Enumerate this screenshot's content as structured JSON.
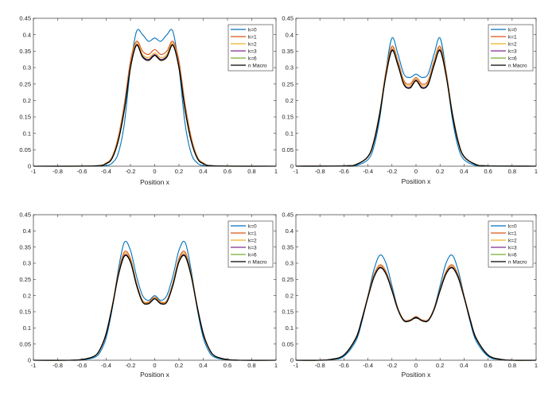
{
  "colors": {
    "k0": "#0072BD",
    "k1": "#D95319",
    "k2": "#EDB120",
    "k3": "#7E2F8E",
    "k6": "#77AC30",
    "macro": "#000000"
  },
  "chart_data": [
    {
      "type": "line",
      "title": "",
      "xlabel": "Position x",
      "ylabel": "",
      "xlim": [
        -1,
        1
      ],
      "ylim": [
        0,
        0.45
      ],
      "xticks": [
        "-1",
        "-0.8",
        "-0.6",
        "-0.4",
        "-0.2",
        "0",
        "0.2",
        "0.4",
        "0.6",
        "0.8",
        "1"
      ],
      "yticks": [
        "0",
        "0.05",
        "0.1",
        "0.15",
        "0.2",
        "0.25",
        "0.3",
        "0.35",
        "0.4",
        "0.45"
      ],
      "legend_position": "top-right",
      "x": [
        -1,
        -0.5,
        -0.4,
        -0.35,
        -0.3,
        -0.25,
        -0.2,
        -0.15,
        -0.1,
        -0.05,
        0,
        0.05,
        0.1,
        0.15,
        0.2,
        0.25,
        0.3,
        0.35,
        0.4,
        0.5,
        1
      ],
      "series": [
        {
          "name": "k=0",
          "color_key": "k0",
          "values": [
            0,
            0,
            0.002,
            0.01,
            0.04,
            0.13,
            0.3,
            0.41,
            0.4,
            0.38,
            0.39,
            0.38,
            0.4,
            0.41,
            0.3,
            0.13,
            0.04,
            0.01,
            0.002,
            0,
            0
          ]
        },
        {
          "name": "k=1",
          "color_key": "k1",
          "values": [
            0,
            0.001,
            0.01,
            0.03,
            0.09,
            0.19,
            0.32,
            0.38,
            0.35,
            0.34,
            0.355,
            0.34,
            0.35,
            0.38,
            0.32,
            0.19,
            0.09,
            0.03,
            0.01,
            0.001,
            0
          ]
        },
        {
          "name": "k=2",
          "color_key": "k2",
          "values": [
            0,
            0.001,
            0.009,
            0.028,
            0.085,
            0.18,
            0.31,
            0.375,
            0.34,
            0.33,
            0.345,
            0.33,
            0.34,
            0.375,
            0.31,
            0.18,
            0.085,
            0.028,
            0.009,
            0.001,
            0
          ]
        },
        {
          "name": "k=3",
          "color_key": "k3",
          "values": [
            0,
            0.001,
            0.008,
            0.026,
            0.08,
            0.175,
            0.305,
            0.37,
            0.335,
            0.325,
            0.34,
            0.325,
            0.335,
            0.37,
            0.305,
            0.175,
            0.08,
            0.026,
            0.008,
            0.001,
            0
          ]
        },
        {
          "name": "k=6",
          "color_key": "k6",
          "values": [
            0,
            0.001,
            0.008,
            0.025,
            0.078,
            0.172,
            0.3,
            0.368,
            0.332,
            0.322,
            0.337,
            0.322,
            0.332,
            0.368,
            0.3,
            0.172,
            0.078,
            0.025,
            0.008,
            0.001,
            0
          ]
        },
        {
          "name": "n Macro",
          "color_key": "macro",
          "values": [
            0,
            0.001,
            0.008,
            0.025,
            0.078,
            0.172,
            0.3,
            0.368,
            0.332,
            0.322,
            0.337,
            0.322,
            0.332,
            0.368,
            0.3,
            0.172,
            0.078,
            0.025,
            0.008,
            0.001,
            0
          ]
        }
      ]
    },
    {
      "type": "line",
      "title": "",
      "xlabel": "Position x",
      "ylabel": "",
      "xlim": [
        -1,
        1
      ],
      "ylim": [
        0,
        0.45
      ],
      "xticks": [
        "-1",
        "-0.8",
        "-0.6",
        "-0.4",
        "-0.2",
        "0",
        "0.2",
        "0.4",
        "0.6",
        "0.8",
        "1"
      ],
      "yticks": [
        "0",
        "0.05",
        "0.1",
        "0.15",
        "0.2",
        "0.25",
        "0.3",
        "0.35",
        "0.4",
        "0.45"
      ],
      "legend_position": "top-right",
      "x": [
        -1,
        -0.6,
        -0.5,
        -0.4,
        -0.35,
        -0.3,
        -0.25,
        -0.2,
        -0.15,
        -0.1,
        -0.05,
        0,
        0.05,
        0.1,
        0.15,
        0.2,
        0.25,
        0.3,
        0.35,
        0.4,
        0.5,
        0.6,
        1
      ],
      "series": [
        {
          "name": "k=0",
          "color_key": "k0",
          "values": [
            0,
            0,
            0.002,
            0.02,
            0.06,
            0.15,
            0.29,
            0.39,
            0.34,
            0.28,
            0.27,
            0.28,
            0.27,
            0.28,
            0.34,
            0.39,
            0.29,
            0.15,
            0.06,
            0.02,
            0.002,
            0,
            0
          ]
        },
        {
          "name": "k=1",
          "color_key": "k1",
          "values": [
            0,
            0.001,
            0.005,
            0.03,
            0.08,
            0.17,
            0.29,
            0.365,
            0.32,
            0.26,
            0.25,
            0.27,
            0.25,
            0.26,
            0.32,
            0.365,
            0.29,
            0.17,
            0.08,
            0.03,
            0.005,
            0.001,
            0
          ]
        },
        {
          "name": "k=2",
          "color_key": "k2",
          "values": [
            0,
            0.001,
            0.005,
            0.03,
            0.078,
            0.168,
            0.285,
            0.36,
            0.315,
            0.255,
            0.245,
            0.265,
            0.245,
            0.255,
            0.315,
            0.36,
            0.285,
            0.168,
            0.078,
            0.03,
            0.005,
            0.001,
            0
          ]
        },
        {
          "name": "k=3",
          "color_key": "k3",
          "values": [
            0,
            0.001,
            0.005,
            0.029,
            0.076,
            0.165,
            0.28,
            0.355,
            0.31,
            0.25,
            0.24,
            0.262,
            0.24,
            0.25,
            0.31,
            0.355,
            0.28,
            0.165,
            0.076,
            0.029,
            0.005,
            0.001,
            0
          ]
        },
        {
          "name": "k=6",
          "color_key": "k6",
          "values": [
            0,
            0.001,
            0.005,
            0.029,
            0.075,
            0.163,
            0.277,
            0.352,
            0.307,
            0.248,
            0.238,
            0.26,
            0.238,
            0.248,
            0.307,
            0.352,
            0.277,
            0.163,
            0.075,
            0.029,
            0.005,
            0.001,
            0
          ]
        },
        {
          "name": "n Macro",
          "color_key": "macro",
          "values": [
            0,
            0.001,
            0.005,
            0.029,
            0.075,
            0.163,
            0.277,
            0.352,
            0.307,
            0.248,
            0.238,
            0.26,
            0.238,
            0.248,
            0.307,
            0.352,
            0.277,
            0.163,
            0.075,
            0.029,
            0.005,
            0.001,
            0
          ]
        }
      ]
    },
    {
      "type": "line",
      "title": "",
      "xlabel": "Position x",
      "ylabel": "",
      "xlim": [
        -1,
        1
      ],
      "ylim": [
        0,
        0.45
      ],
      "xticks": [
        "-1",
        "-0.8",
        "-0.6",
        "-0.4",
        "-0.2",
        "0",
        "0.2",
        "0.4",
        "0.6",
        "0.8",
        "1"
      ],
      "yticks": [
        "0",
        "0.05",
        "0.1",
        "0.15",
        "0.2",
        "0.25",
        "0.3",
        "0.35",
        "0.4",
        "0.45"
      ],
      "legend_position": "top-right",
      "x": [
        -1,
        -0.7,
        -0.6,
        -0.5,
        -0.45,
        -0.4,
        -0.35,
        -0.3,
        -0.25,
        -0.2,
        -0.15,
        -0.1,
        -0.05,
        0,
        0.05,
        0.1,
        0.15,
        0.2,
        0.25,
        0.3,
        0.35,
        0.4,
        0.45,
        0.5,
        0.6,
        0.7,
        1
      ],
      "series": [
        {
          "name": "k=0",
          "color_key": "k0",
          "values": [
            0,
            0,
            0.001,
            0.008,
            0.025,
            0.07,
            0.16,
            0.28,
            0.365,
            0.34,
            0.26,
            0.2,
            0.185,
            0.2,
            0.185,
            0.2,
            0.26,
            0.34,
            0.365,
            0.28,
            0.16,
            0.07,
            0.025,
            0.008,
            0.001,
            0,
            0
          ]
        },
        {
          "name": "k=1",
          "color_key": "k1",
          "values": [
            0,
            0,
            0.002,
            0.012,
            0.035,
            0.085,
            0.17,
            0.27,
            0.335,
            0.315,
            0.24,
            0.185,
            0.18,
            0.195,
            0.18,
            0.185,
            0.24,
            0.315,
            0.335,
            0.27,
            0.17,
            0.085,
            0.035,
            0.012,
            0.002,
            0,
            0
          ]
        },
        {
          "name": "k=2",
          "color_key": "k2",
          "values": [
            0,
            0,
            0.002,
            0.012,
            0.034,
            0.083,
            0.168,
            0.267,
            0.33,
            0.31,
            0.237,
            0.183,
            0.178,
            0.193,
            0.178,
            0.183,
            0.237,
            0.31,
            0.33,
            0.267,
            0.168,
            0.083,
            0.034,
            0.012,
            0.002,
            0,
            0
          ]
        },
        {
          "name": "k=3",
          "color_key": "k3",
          "values": [
            0,
            0,
            0.002,
            0.012,
            0.034,
            0.082,
            0.166,
            0.264,
            0.325,
            0.306,
            0.234,
            0.181,
            0.176,
            0.191,
            0.176,
            0.181,
            0.234,
            0.306,
            0.325,
            0.264,
            0.166,
            0.082,
            0.034,
            0.012,
            0.002,
            0,
            0
          ]
        },
        {
          "name": "k=6",
          "color_key": "k6",
          "values": [
            0,
            0,
            0.002,
            0.012,
            0.034,
            0.082,
            0.165,
            0.262,
            0.322,
            0.304,
            0.232,
            0.18,
            0.175,
            0.19,
            0.175,
            0.18,
            0.232,
            0.304,
            0.322,
            0.262,
            0.165,
            0.082,
            0.034,
            0.012,
            0.002,
            0,
            0
          ]
        },
        {
          "name": "n Macro",
          "color_key": "macro",
          "values": [
            0,
            0,
            0.002,
            0.012,
            0.034,
            0.082,
            0.165,
            0.262,
            0.322,
            0.304,
            0.232,
            0.18,
            0.175,
            0.19,
            0.175,
            0.18,
            0.232,
            0.304,
            0.322,
            0.262,
            0.165,
            0.082,
            0.034,
            0.012,
            0.002,
            0,
            0
          ]
        }
      ]
    },
    {
      "type": "line",
      "title": "",
      "xlabel": "Position x",
      "ylabel": "",
      "xlim": [
        -1,
        1
      ],
      "ylim": [
        0,
        0.45
      ],
      "xticks": [
        "-1",
        "-0.8",
        "-0.6",
        "-0.4",
        "-0.2",
        "0",
        "0.2",
        "0.4",
        "0.6",
        "0.8",
        "1"
      ],
      "yticks": [
        "0",
        "0.05",
        "0.1",
        "0.15",
        "0.2",
        "0.25",
        "0.3",
        "0.35",
        "0.4",
        "0.45"
      ],
      "legend_position": "top-right",
      "x": [
        -1,
        -0.8,
        -0.7,
        -0.6,
        -0.5,
        -0.45,
        -0.4,
        -0.35,
        -0.3,
        -0.25,
        -0.2,
        -0.15,
        -0.1,
        -0.05,
        0,
        0.05,
        0.1,
        0.15,
        0.2,
        0.25,
        0.3,
        0.35,
        0.4,
        0.45,
        0.5,
        0.6,
        0.7,
        0.8,
        1
      ],
      "series": [
        {
          "name": "k=0",
          "color_key": "k0",
          "values": [
            0,
            0,
            0.002,
            0.012,
            0.06,
            0.12,
            0.2,
            0.28,
            0.325,
            0.3,
            0.23,
            0.16,
            0.125,
            0.125,
            0.13,
            0.125,
            0.125,
            0.16,
            0.23,
            0.3,
            0.325,
            0.28,
            0.2,
            0.12,
            0.06,
            0.012,
            0.002,
            0,
            0
          ]
        },
        {
          "name": "k=1",
          "color_key": "k1",
          "values": [
            0,
            0,
            0.003,
            0.016,
            0.07,
            0.13,
            0.2,
            0.265,
            0.295,
            0.275,
            0.22,
            0.16,
            0.125,
            0.125,
            0.135,
            0.125,
            0.125,
            0.16,
            0.22,
            0.275,
            0.295,
            0.265,
            0.2,
            0.13,
            0.07,
            0.016,
            0.003,
            0,
            0
          ]
        },
        {
          "name": "k=2",
          "color_key": "k2",
          "values": [
            0,
            0,
            0.003,
            0.016,
            0.069,
            0.128,
            0.198,
            0.262,
            0.292,
            0.272,
            0.218,
            0.158,
            0.124,
            0.124,
            0.134,
            0.124,
            0.124,
            0.158,
            0.218,
            0.272,
            0.292,
            0.262,
            0.198,
            0.128,
            0.069,
            0.016,
            0.003,
            0,
            0
          ]
        },
        {
          "name": "k=3",
          "color_key": "k3",
          "values": [
            0,
            0,
            0.003,
            0.016,
            0.068,
            0.127,
            0.196,
            0.259,
            0.288,
            0.269,
            0.216,
            0.157,
            0.123,
            0.123,
            0.133,
            0.123,
            0.123,
            0.157,
            0.216,
            0.269,
            0.288,
            0.259,
            0.196,
            0.127,
            0.068,
            0.016,
            0.003,
            0,
            0
          ]
        },
        {
          "name": "k=6",
          "color_key": "k6",
          "values": [
            0,
            0,
            0.003,
            0.016,
            0.068,
            0.126,
            0.195,
            0.257,
            0.286,
            0.267,
            0.215,
            0.156,
            0.122,
            0.122,
            0.132,
            0.122,
            0.122,
            0.156,
            0.215,
            0.267,
            0.286,
            0.257,
            0.195,
            0.126,
            0.068,
            0.016,
            0.003,
            0,
            0
          ]
        },
        {
          "name": "n Macro",
          "color_key": "macro",
          "values": [
            0,
            0,
            0.003,
            0.016,
            0.068,
            0.126,
            0.195,
            0.257,
            0.286,
            0.267,
            0.215,
            0.156,
            0.122,
            0.122,
            0.132,
            0.122,
            0.122,
            0.156,
            0.215,
            0.267,
            0.286,
            0.257,
            0.195,
            0.126,
            0.068,
            0.016,
            0.003,
            0,
            0
          ]
        }
      ]
    }
  ]
}
